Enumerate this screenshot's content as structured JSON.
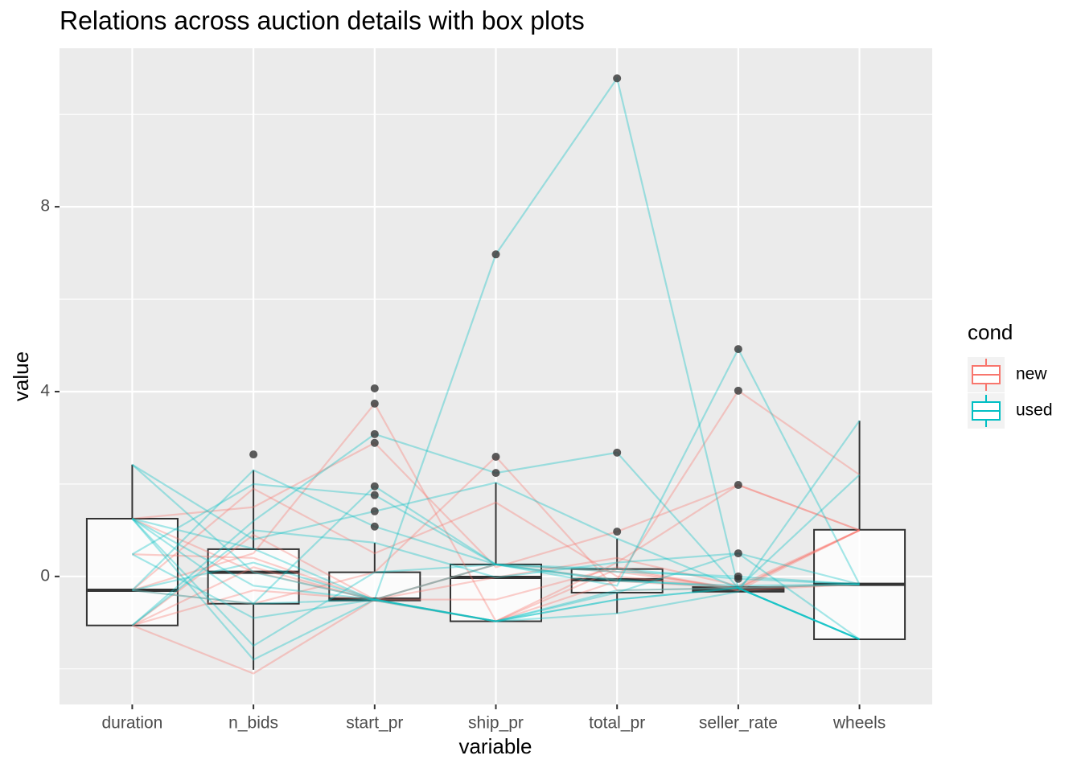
{
  "chart_data": {
    "type": "parallel-box",
    "title": "Relations across auction details with box plots",
    "x_label": "variable",
    "y_label": "value",
    "legend_title": "cond",
    "categories": [
      "duration",
      "n_bids",
      "start_pr",
      "ship_pr",
      "total_pr",
      "seller_rate",
      "wheels"
    ],
    "ylim": [
      -2.77,
      11.43
    ],
    "yticks": [
      0,
      4,
      8
    ],
    "grid": true,
    "boxes": [
      {
        "whisker_low": -1.06,
        "q1": -1.06,
        "median": -0.3,
        "q3": 1.25,
        "whisker_high": 2.42,
        "outliers": []
      },
      {
        "whisker_low": -2.02,
        "q1": -0.59,
        "median": 0.09,
        "q3": 0.59,
        "whisker_high": 2.3,
        "outliers": [
          2.64
        ]
      },
      {
        "whisker_low": -0.52,
        "q1": -0.52,
        "median": -0.49,
        "q3": 0.09,
        "whisker_high": 0.73,
        "outliers": [
          4.07,
          3.74,
          3.08,
          2.89,
          1.95,
          1.76,
          1.41,
          1.08
        ]
      },
      {
        "whisker_low": -0.97,
        "q1": -0.97,
        "median": -0.02,
        "q3": 0.26,
        "whisker_high": 2.03,
        "outliers": [
          6.97,
          2.59,
          2.24
        ]
      },
      {
        "whisker_low": -0.8,
        "q1": -0.35,
        "median": -0.07,
        "q3": 0.16,
        "whisker_high": 0.82,
        "outliers": [
          10.78,
          2.68,
          0.97
        ]
      },
      {
        "whisker_low": -0.33,
        "q1": -0.33,
        "median": -0.28,
        "q3": -0.23,
        "whisker_high": -0.23,
        "outliers": [
          4.92,
          4.02,
          1.98,
          0.5,
          0.0,
          -0.05
        ]
      },
      {
        "whisker_low": -1.36,
        "q1": -1.36,
        "median": -0.17,
        "q3": 1.01,
        "whisker_high": 3.37,
        "outliers": []
      }
    ],
    "series": [
      {
        "name": "new",
        "color": "#F8766D",
        "lines": [
          [
            -1.06,
            -2.1,
            -0.5,
            -0.97,
            -0.1,
            -0.25,
            1.0
          ],
          [
            -0.3,
            0.5,
            3.74,
            -0.97,
            0.3,
            1.98,
            1.0
          ],
          [
            1.25,
            0.1,
            -0.5,
            0.26,
            0.1,
            -0.25,
            -0.17
          ],
          [
            -1.06,
            0.9,
            -0.5,
            -0.02,
            0.4,
            -0.2,
            1.0
          ],
          [
            -0.3,
            -0.59,
            0.09,
            2.59,
            -0.3,
            -0.25,
            1.0
          ],
          [
            1.25,
            1.5,
            2.89,
            0.2,
            0.97,
            1.98,
            1.0
          ],
          [
            -1.06,
            -0.3,
            -0.5,
            -0.5,
            0.2,
            -0.3,
            -0.17
          ],
          [
            0.48,
            0.4,
            -0.5,
            0.26,
            -0.07,
            4.02,
            2.2
          ],
          [
            -0.3,
            1.9,
            0.5,
            1.6,
            0.0,
            -0.25,
            -0.17
          ],
          [
            -1.06,
            0.2,
            -0.52,
            -0.97,
            0.16,
            -0.3,
            1.0
          ]
        ]
      },
      {
        "name": "used",
        "color": "#00BFC4",
        "lines": [
          [
            1.25,
            -0.59,
            -0.5,
            -0.97,
            -0.3,
            -0.25,
            -1.36
          ],
          [
            2.42,
            0.09,
            -0.5,
            -0.97,
            -0.5,
            -0.25,
            -1.36
          ],
          [
            -0.3,
            2.3,
            1.08,
            0.26,
            -0.1,
            -0.2,
            -0.17
          ],
          [
            0.48,
            -0.9,
            -0.5,
            6.97,
            10.78,
            -0.25,
            -0.17
          ],
          [
            1.25,
            0.6,
            -0.52,
            -0.97,
            -0.35,
            0.5,
            -1.36
          ],
          [
            -1.06,
            1.2,
            3.08,
            2.24,
            2.68,
            -0.25,
            -1.36
          ],
          [
            1.25,
            -1.5,
            0.09,
            0.26,
            -0.2,
            4.92,
            -0.17
          ],
          [
            -0.3,
            0.3,
            -0.5,
            -0.97,
            -0.8,
            -0.33,
            3.37
          ],
          [
            0.48,
            2.0,
            1.76,
            0.26,
            0.1,
            0.0,
            -0.17
          ],
          [
            1.25,
            -0.2,
            -0.5,
            0.26,
            -0.07,
            -0.25,
            -1.36
          ],
          [
            -1.06,
            1.0,
            0.73,
            -0.02,
            0.3,
            0.5,
            -0.17
          ],
          [
            1.25,
            -1.8,
            -0.5,
            -0.97,
            -0.5,
            -0.25,
            -1.36
          ],
          [
            2.42,
            0.8,
            1.41,
            2.03,
            0.82,
            -0.25,
            2.2
          ],
          [
            -0.3,
            -0.59,
            1.95,
            0.26,
            0.16,
            -0.05,
            -0.17
          ]
        ]
      }
    ]
  }
}
